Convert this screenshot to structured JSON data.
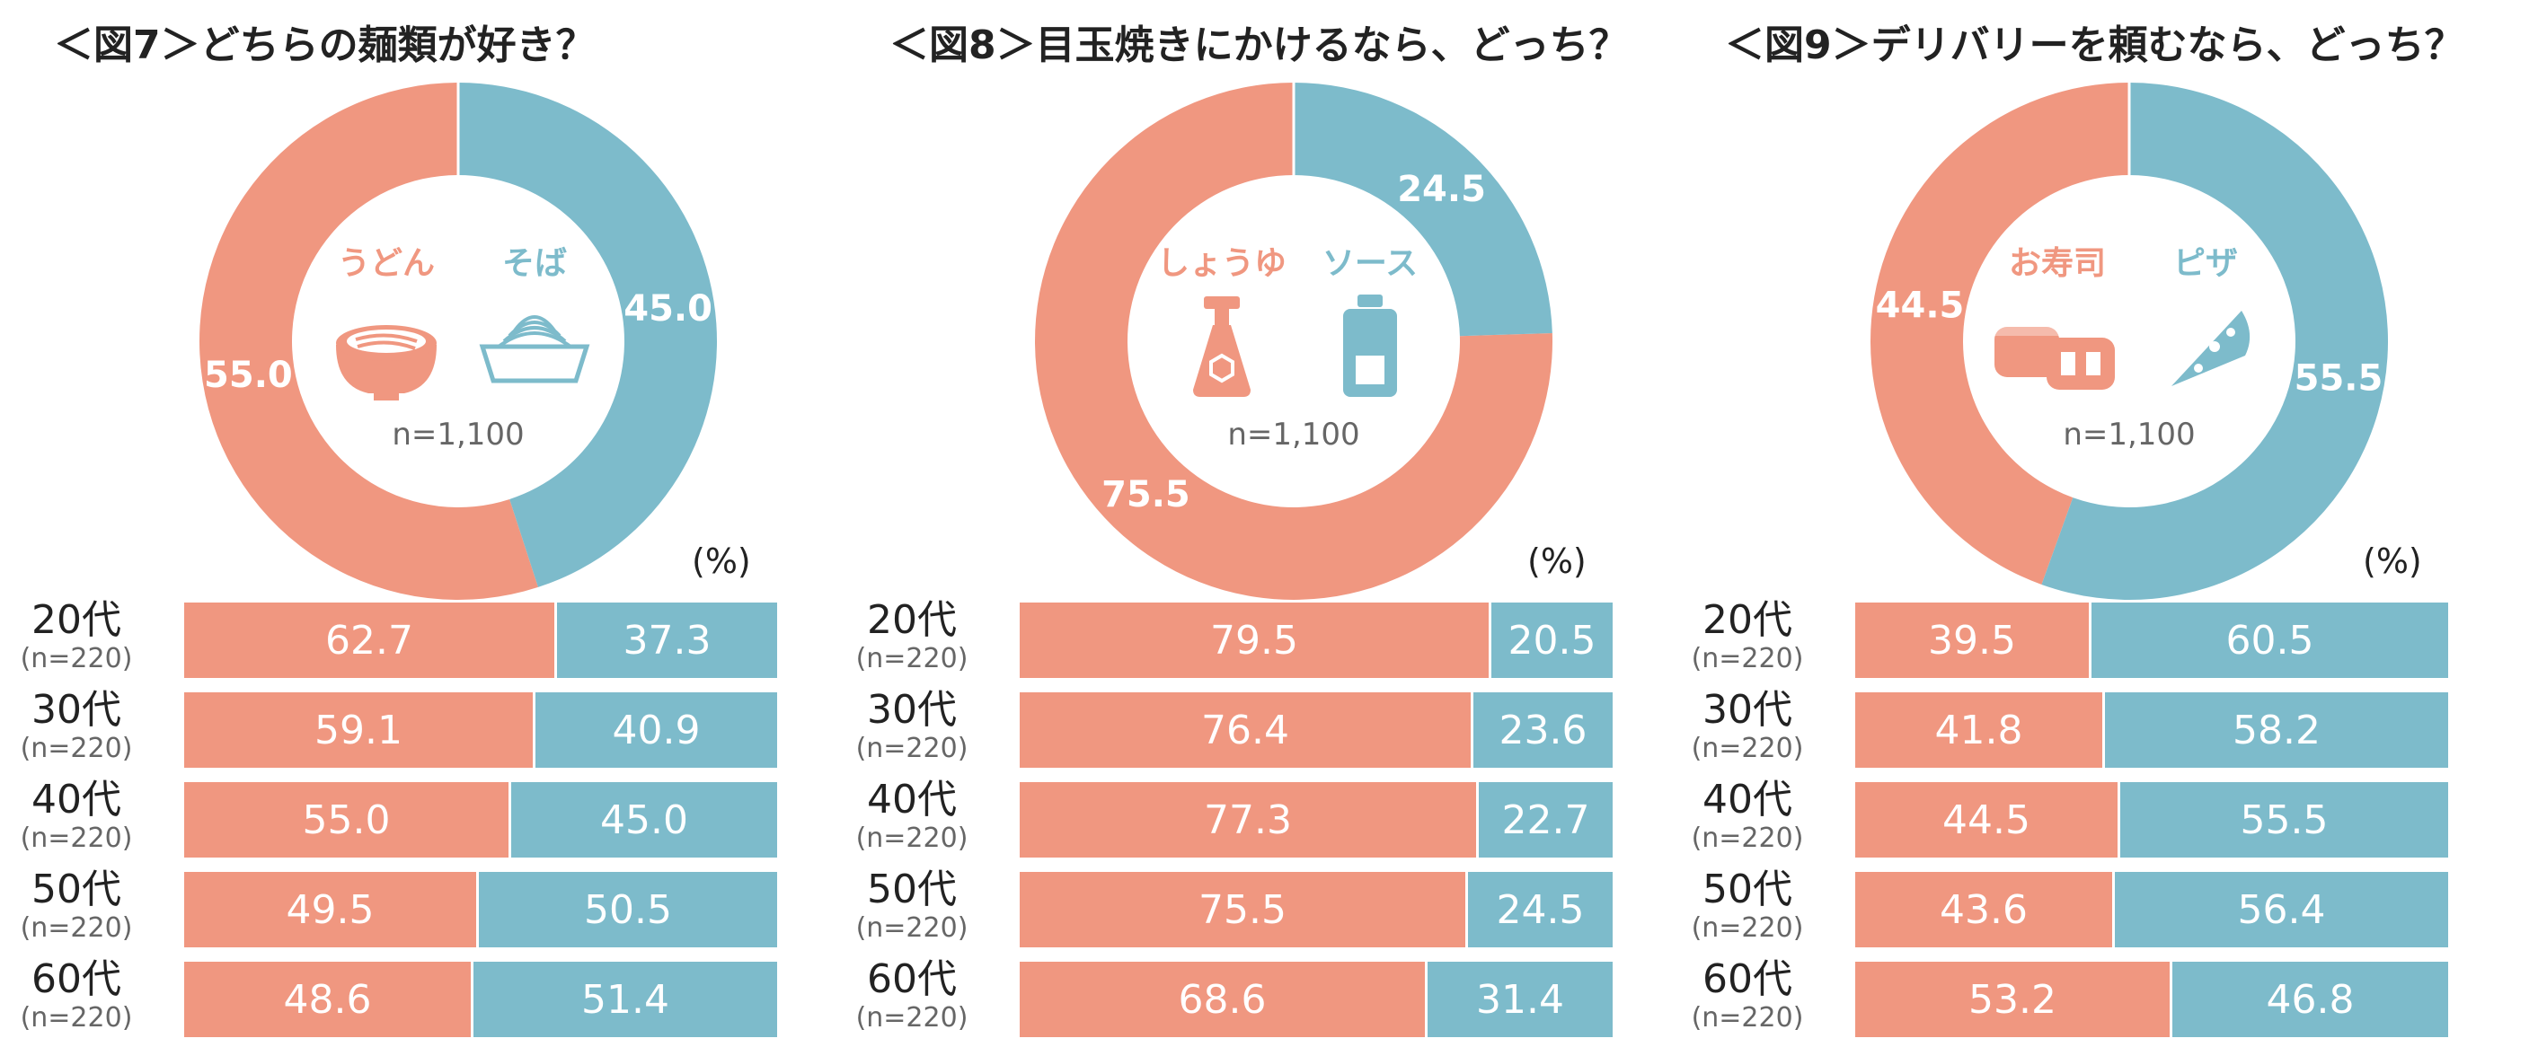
{
  "colors": {
    "option_a": "#f09780",
    "option_b": "#7dbbcb",
    "divider": "#ffffff"
  },
  "chart_data": [
    {
      "type": "pie",
      "title": "＜図7＞どちらの麺類が好き？",
      "donut": {
        "categories": [
          "うどん",
          "そば"
        ],
        "values": [
          55.0,
          45.0
        ],
        "value_labels": [
          "55.0",
          "45.0"
        ],
        "n_label": "n=1,100",
        "icons": [
          "udon-bowl-icon",
          "soba-zaru-icon"
        ]
      },
      "unit": "(%)",
      "bars": {
        "type": "bar",
        "stacked": true,
        "categories": [
          "20代",
          "30代",
          "40代",
          "50代",
          "60代"
        ],
        "sample_sizes": [
          "(n=220)",
          "(n=220)",
          "(n=220)",
          "(n=220)",
          "(n=220)"
        ],
        "series": [
          {
            "values": [
              62.7,
              59.1,
              55.0,
              49.5,
              48.6
            ],
            "labels": [
              "62.7",
              "59.1",
              "55.0",
              "49.5",
              "48.6"
            ]
          },
          {
            "values": [
              37.3,
              40.9,
              45.0,
              50.5,
              51.4
            ],
            "labels": [
              "37.3",
              "40.9",
              "45.0",
              "50.5",
              "51.4"
            ]
          }
        ]
      }
    },
    {
      "type": "pie",
      "title": "＜図8＞目玉焼きにかけるなら、どっち？",
      "donut": {
        "categories": [
          "しょうゆ",
          "ソース"
        ],
        "values": [
          75.5,
          24.5
        ],
        "value_labels": [
          "75.5",
          "24.5"
        ],
        "n_label": "n=1,100",
        "icons": [
          "soy-sauce-bottle-icon",
          "sauce-bottle-icon"
        ]
      },
      "unit": "(%)",
      "bars": {
        "type": "bar",
        "stacked": true,
        "categories": [
          "20代",
          "30代",
          "40代",
          "50代",
          "60代"
        ],
        "sample_sizes": [
          "(n=220)",
          "(n=220)",
          "(n=220)",
          "(n=220)",
          "(n=220)"
        ],
        "series": [
          {
            "values": [
              79.5,
              76.4,
              77.3,
              75.5,
              68.6
            ],
            "labels": [
              "79.5",
              "76.4",
              "77.3",
              "75.5",
              "68.6"
            ]
          },
          {
            "values": [
              20.5,
              23.6,
              22.7,
              24.5,
              31.4
            ],
            "labels": [
              "20.5",
              "23.6",
              "22.7",
              "24.5",
              "31.4"
            ]
          }
        ]
      }
    },
    {
      "type": "pie",
      "title": "＜図9＞デリバリーを頼むなら、どっち？",
      "donut": {
        "categories": [
          "お寿司",
          "ピザ"
        ],
        "values": [
          44.5,
          55.5
        ],
        "value_labels": [
          "44.5",
          "55.5"
        ],
        "n_label": "n=1,100",
        "icons": [
          "sushi-icon",
          "pizza-slice-icon"
        ]
      },
      "unit": "(%)",
      "bars": {
        "type": "bar",
        "stacked": true,
        "categories": [
          "20代",
          "30代",
          "40代",
          "50代",
          "60代"
        ],
        "sample_sizes": [
          "(n=220)",
          "(n=220)",
          "(n=220)",
          "(n=220)",
          "(n=220)"
        ],
        "series": [
          {
            "values": [
              39.5,
              41.8,
              44.5,
              43.6,
              53.2
            ],
            "labels": [
              "39.5",
              "41.8",
              "44.5",
              "43.6",
              "53.2"
            ]
          },
          {
            "values": [
              60.5,
              58.2,
              55.5,
              56.4,
              46.8
            ],
            "labels": [
              "60.5",
              "58.2",
              "55.5",
              "56.4",
              "46.8"
            ]
          }
        ]
      }
    }
  ]
}
